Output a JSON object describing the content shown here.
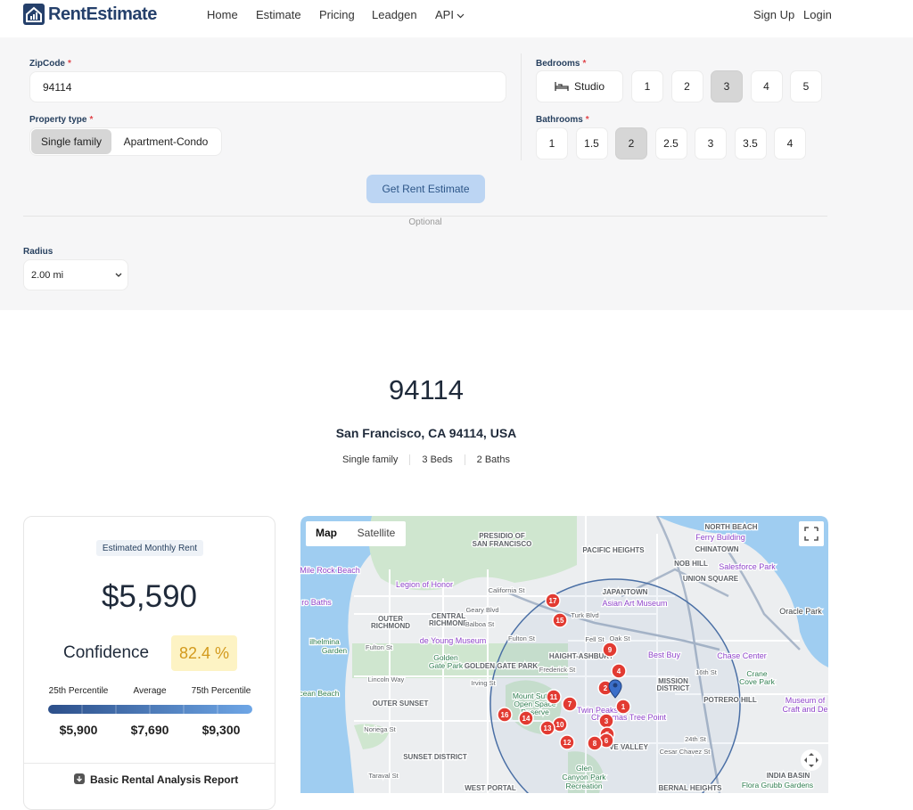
{
  "header": {
    "logo": "RentEstimate",
    "nav": [
      "Home",
      "Estimate",
      "Pricing",
      "Leadgen",
      "API"
    ],
    "auth": [
      "Sign Up",
      "Login"
    ]
  },
  "form": {
    "zipcode_label": "ZipCode",
    "required": "*",
    "zipcode": "94114",
    "property_type_label": "Property type",
    "property_types": [
      "Single family",
      "Apartment-Condo"
    ],
    "selected_property_type": 0,
    "bedrooms_label": "Bedrooms",
    "bedrooms": [
      "Studio",
      "1",
      "2",
      "3",
      "4",
      "5"
    ],
    "selected_bedroom": 3,
    "bathrooms_label": "Bathrooms",
    "bathrooms": [
      "1",
      "1.5",
      "2",
      "2.5",
      "3",
      "3.5",
      "4"
    ],
    "selected_bathroom": 2,
    "submit": "Get Rent Estimate",
    "optional": "Optional",
    "radius_label": "Radius",
    "radius": "2.00 mi"
  },
  "result": {
    "zip": "94114",
    "address": "San Francisco, CA 94114, USA",
    "tags": [
      "Single family",
      "3 Beds",
      "2 Baths"
    ]
  },
  "estimate": {
    "label": "Estimated Monthly Rent",
    "rent": "$5,590",
    "confidence_label": "Confidence",
    "confidence": "82.4 %",
    "percentile_labels": [
      "25th Percentile",
      "Average",
      "75th Percentile"
    ],
    "percentile_values": [
      "$5,900",
      "$7,690",
      "$9,300"
    ],
    "report": "Basic Rental Analysis Report"
  },
  "map": {
    "tabs": [
      "Map",
      "Satellite"
    ],
    "labels": [
      "NORTH BEACH",
      "Ferry Building",
      "CHINATOWN",
      "PACIFIC HEIGHTS",
      "PRESIDIO OF",
      "SAN FRANCISCO",
      "NOB HILL",
      "Salesforce Park",
      "UNION SQUARE",
      "Mile Rock Beach",
      "Legion of Honor",
      "California St",
      "JAPANTOWN",
      "Asian Art Museum",
      "Oracle Park",
      "OUTER",
      "RICHMOND",
      "CENTRAL",
      "RICHMOND",
      "Geary Blvd",
      "Balboa St",
      "Turk Blvd",
      "Fulton St",
      "de Young Museum",
      "Fulton St",
      "Fell St",
      "Oak St",
      "Golden",
      "Gate Park",
      "GOLDEN GATE PARK",
      "HAIGHT-ASHBURY",
      "Best Buy",
      "Chase Center",
      "Frederick St",
      "Lincoln Way",
      "Irving St",
      "MISSION",
      "DISTRICT",
      "16th St",
      "Crane",
      "Cove Park",
      "cean Beach",
      "OUTER SUNSET",
      "Mount Sutro",
      "Open Space",
      "Reserve",
      "Twin Peaks",
      "Christmas Tree Point",
      "POTRERO HILL",
      "Museum of",
      "Craft and De",
      "Noriega St",
      "24th St",
      "Cesar Chavez St",
      "SUNSET DISTRICT",
      "Taraval St",
      "Glen",
      "Canyon Park",
      "Recreation",
      "WEST PORTAL",
      "BERNAL HEIGHTS",
      "INDIA BASIN",
      "Flora Grubb Gardens",
      "ro Baths",
      "ilhelmina",
      "Garden",
      "VE VALLEY"
    ],
    "markers": [
      "1",
      "2",
      "3",
      "4",
      "5",
      "6",
      "7",
      "8",
      "9",
      "10",
      "11",
      "12",
      "13",
      "14",
      "15",
      "16",
      "17"
    ]
  }
}
